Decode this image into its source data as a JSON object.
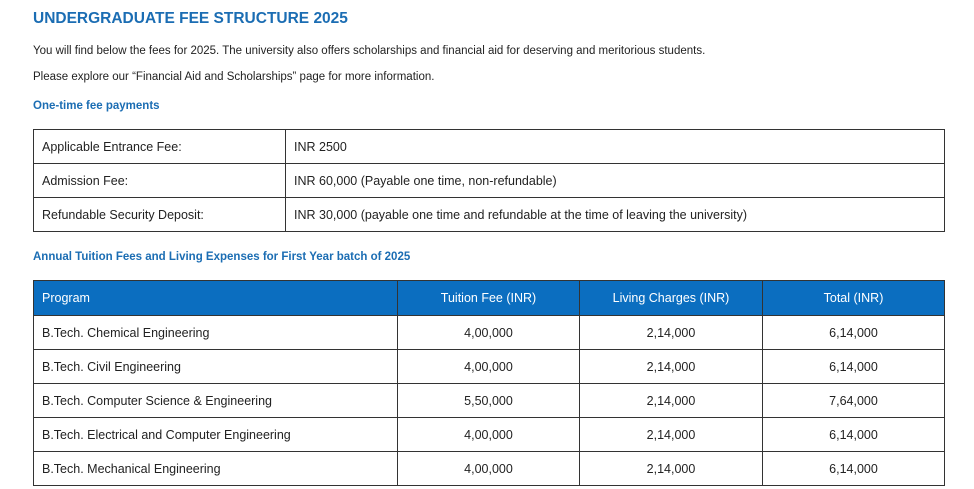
{
  "header": {
    "title": "UNDERGRADUATE FEE STRUCTURE 2025"
  },
  "intro": [
    "You will find below the fees for 2025. The university also offers scholarships and financial aid for deserving and meritorious students.",
    "Please explore our “Financial Aid and Scholarships” page for more information."
  ],
  "one_time": {
    "heading": "One-time fee payments",
    "rows": [
      [
        "Applicable Entrance Fee:",
        "INR 2500"
      ],
      [
        "Admission Fee:",
        "INR 60,000 (Payable one time, non-refundable)"
      ],
      [
        "Refundable Security Deposit:",
        "INR 30,000 (payable one time and refundable at the time of leaving the university)"
      ]
    ]
  },
  "annual": {
    "heading": "Annual Tuition Fees and Living Expenses for First Year batch of 2025",
    "columns": [
      "Program",
      "Tuition Fee (INR)",
      "Living Charges (INR)",
      "Total (INR)"
    ],
    "rows": [
      [
        "B.Tech. Chemical Engineering",
        "4,00,000",
        "2,14,000",
        "6,14,000"
      ],
      [
        "B.Tech. Civil Engineering",
        "4,00,000",
        "2,14,000",
        "6,14,000"
      ],
      [
        "B.Tech. Computer Science & Engineering",
        "5,50,000",
        "2,14,000",
        "7,64,000"
      ],
      [
        "B.Tech. Electrical and Computer Engineering",
        "4,00,000",
        "2,14,000",
        "6,14,000"
      ],
      [
        "B.Tech. Mechanical Engineering",
        "4,00,000",
        "2,14,000",
        "6,14,000"
      ]
    ]
  }
}
